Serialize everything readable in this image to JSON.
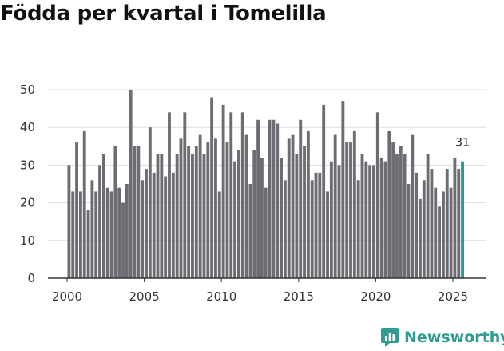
{
  "chart_data": {
    "type": "bar",
    "title": "Födda per kvartal i Tomelilla",
    "xlabel": "",
    "ylabel": "",
    "ylim": [
      0,
      50
    ],
    "yticks": [
      0,
      10,
      20,
      30,
      40,
      50
    ],
    "xticks": [
      2000,
      2005,
      2010,
      2015,
      2020,
      2025
    ],
    "grid": "horizontal",
    "start_year": 2000,
    "categories": [
      "2000 Q1",
      "2000 Q2",
      "2000 Q3",
      "2000 Q4",
      "2001 Q1",
      "2001 Q2",
      "2001 Q3",
      "2001 Q4",
      "2002 Q1",
      "2002 Q2",
      "2002 Q3",
      "2002 Q4",
      "2003 Q1",
      "2003 Q2",
      "2003 Q3",
      "2003 Q4",
      "2004 Q1",
      "2004 Q2",
      "2004 Q3",
      "2004 Q4",
      "2005 Q1",
      "2005 Q2",
      "2005 Q3",
      "2005 Q4",
      "2006 Q1",
      "2006 Q2",
      "2006 Q3",
      "2006 Q4",
      "2007 Q1",
      "2007 Q2",
      "2007 Q3",
      "2007 Q4",
      "2008 Q1",
      "2008 Q2",
      "2008 Q3",
      "2008 Q4",
      "2009 Q1",
      "2009 Q2",
      "2009 Q3",
      "2009 Q4",
      "2010 Q1",
      "2010 Q2",
      "2010 Q3",
      "2010 Q4",
      "2011 Q1",
      "2011 Q2",
      "2011 Q3",
      "2011 Q4",
      "2012 Q1",
      "2012 Q2",
      "2012 Q3",
      "2012 Q4",
      "2013 Q1",
      "2013 Q2",
      "2013 Q3",
      "2013 Q4",
      "2014 Q1",
      "2014 Q2",
      "2014 Q3",
      "2014 Q4",
      "2015 Q1",
      "2015 Q2",
      "2015 Q3",
      "2015 Q4",
      "2016 Q1",
      "2016 Q2",
      "2016 Q3",
      "2016 Q4",
      "2017 Q1",
      "2017 Q2",
      "2017 Q3",
      "2017 Q4",
      "2018 Q1",
      "2018 Q2",
      "2018 Q3",
      "2018 Q4",
      "2019 Q1",
      "2019 Q2",
      "2019 Q3",
      "2019 Q4",
      "2020 Q1",
      "2020 Q2",
      "2020 Q3",
      "2020 Q4",
      "2021 Q1",
      "2021 Q2",
      "2021 Q3",
      "2021 Q4",
      "2022 Q1",
      "2022 Q2",
      "2022 Q3",
      "2022 Q4",
      "2023 Q1",
      "2023 Q2",
      "2023 Q3",
      "2023 Q4",
      "2024 Q1",
      "2024 Q2",
      "2024 Q3",
      "2024 Q4",
      "2025 Q1",
      "2025 Q2",
      "2025 Q3"
    ],
    "values": [
      30,
      23,
      36,
      23,
      39,
      18,
      26,
      23,
      30,
      33,
      24,
      23,
      35,
      24,
      20,
      25,
      50,
      35,
      35,
      26,
      29,
      40,
      28,
      33,
      33,
      27,
      44,
      28,
      33,
      37,
      44,
      35,
      33,
      35,
      38,
      33,
      36,
      48,
      37,
      23,
      46,
      36,
      44,
      31,
      34,
      44,
      38,
      25,
      34,
      42,
      32,
      24,
      42,
      42,
      41,
      32,
      26,
      37,
      38,
      33,
      42,
      35,
      39,
      26,
      28,
      28,
      46,
      23,
      31,
      38,
      30,
      47,
      36,
      36,
      39,
      26,
      33,
      31,
      30,
      30,
      44,
      32,
      31,
      39,
      36,
      33,
      35,
      33,
      25,
      38,
      28,
      21,
      26,
      33,
      29,
      24,
      19,
      23,
      29,
      24,
      32,
      29,
      31
    ],
    "highlight_index": 102,
    "highlight_label": "31",
    "colors": {
      "bar": "#6e6c72",
      "highlight": "#1f9e93",
      "grid": "#dddddd",
      "axis": "#333333"
    }
  },
  "brand": {
    "name": "Newsworthy",
    "icon": "newsworthy-logo-icon",
    "color": "#2e9c90"
  }
}
